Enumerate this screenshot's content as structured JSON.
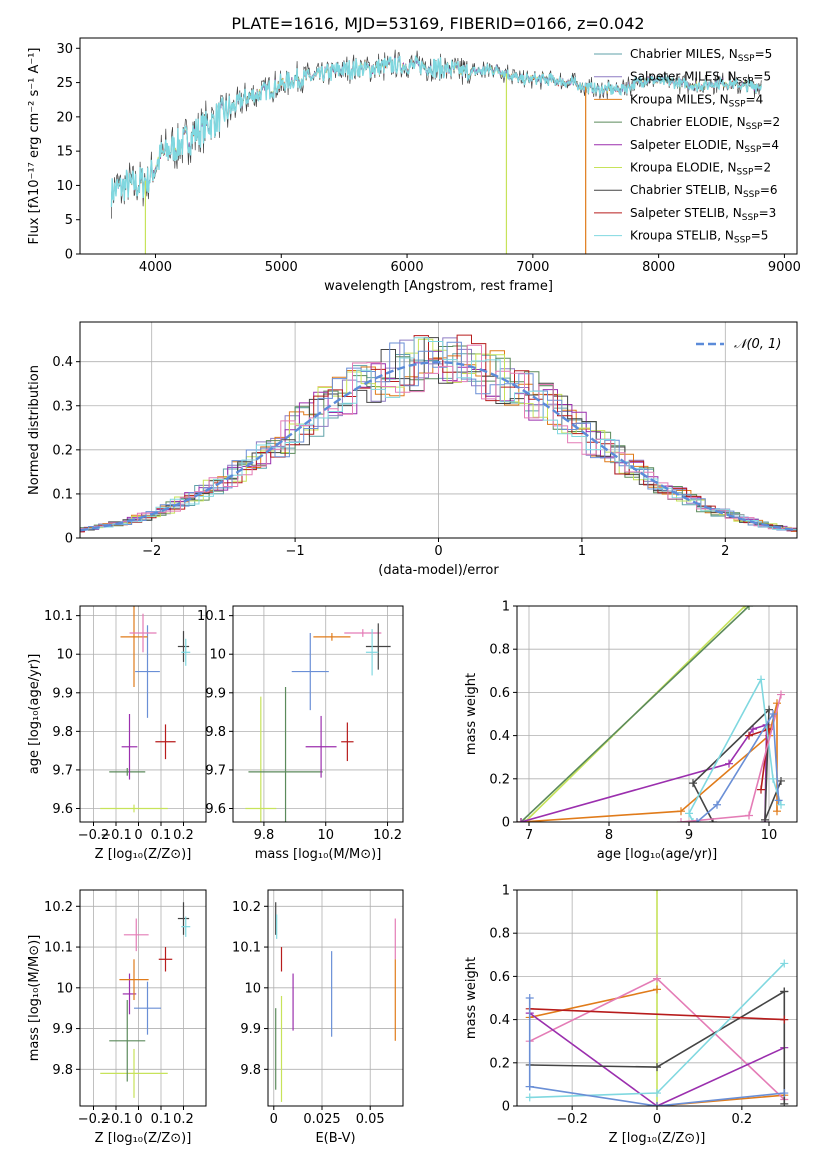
{
  "figure_title": "PLATE=1616, MJD=53169, FIBERID=0166, z=0.042",
  "colors": {
    "chabrier_miles": "#5fa2a9",
    "salpeter_miles": "#8e7cc3",
    "kroupa_miles": "#e07b1a",
    "chabrier_elodie": "#5b8a5b",
    "salpeter_elodie": "#9b2fae",
    "kroupa_elodie": "#c7e35a",
    "chabrier_stelib": "#444444",
    "salpeter_stelib": "#b71c1c",
    "kroupa_stelib": "#80d8e0",
    "blue": "#6a8fd6",
    "pink": "#e47cb6",
    "orange": "#e07b1a"
  },
  "chart_data": [
    {
      "id": "spectrum",
      "type": "line",
      "title": "PLATE=1616, MJD=53169, FIBERID=0166, z=0.042",
      "xlabel": "wavelength [Angstrom, rest frame]",
      "ylabel": "Flux [fλ10⁻¹⁷ erg cm⁻² s⁻¹ A⁻¹]",
      "xlim": [
        3400,
        9100
      ],
      "ylim": [
        0,
        31.5
      ],
      "xticks": [
        4000,
        5000,
        6000,
        7000,
        8000,
        9000
      ],
      "yticks": [
        0,
        5,
        10,
        15,
        20,
        25,
        30
      ],
      "legend_position": "top-right",
      "legend": [
        "Chabrier MILES, N_SSP=5",
        "Salpeter MILES, N_SSP=5",
        "Kroupa MILES, N_SSP=4",
        "Chabrier ELODIE, N_SSP=2",
        "Salpeter ELODIE, N_SSP=4",
        "Kroupa ELODIE, N_SSP=2",
        "Chabrier STELIB, N_SSP=6",
        "Salpeter STELIB, N_SSP=3",
        "Kroupa STELIB, N_SSP=5"
      ],
      "continuum_x": [
        3650,
        3750,
        3850,
        3950,
        4050,
        4200,
        4350,
        4500,
        4700,
        4900,
        5100,
        5300,
        5500,
        5700,
        5900,
        6100,
        6300,
        6500,
        6700,
        6900,
        7100,
        7300,
        7500,
        7700,
        7900,
        8100,
        8300,
        8500,
        8700,
        8820
      ],
      "continuum_y": [
        9.0,
        10.0,
        10.0,
        11.0,
        14.5,
        16.0,
        18.0,
        20.0,
        22.5,
        24.0,
        25.5,
        26.0,
        27.0,
        27.0,
        27.5,
        27.5,
        27.0,
        26.5,
        27.0,
        25.5,
        25.5,
        25.0,
        24.0,
        24.0,
        25.5,
        25.0,
        24.5,
        25.0,
        24.5,
        24.5
      ],
      "drops": [
        {
          "x": 3920,
          "series": "Kroupa ELODIE"
        },
        {
          "x": 6790,
          "series": "Kroupa ELODIE"
        },
        {
          "x": 7420,
          "series": "Kroupa MILES"
        }
      ]
    },
    {
      "id": "residual-histogram",
      "type": "histogram",
      "xlabel": "(data-model)/error",
      "ylabel": "Normed distribution",
      "xlim": [
        -2.5,
        2.5
      ],
      "ylim": [
        0,
        0.49
      ],
      "xticks": [
        -2,
        -1,
        0,
        1,
        2
      ],
      "yticks": [
        0.0,
        0.1,
        0.2,
        0.3,
        0.4
      ],
      "grid": true,
      "legend_position": "top-right",
      "legend": [
        "𝒩(0, 1)"
      ],
      "bin_width": 0.1,
      "reference_curve": {
        "name": "𝒩(0, 1)",
        "mean": 0,
        "sigma": 1
      }
    },
    {
      "id": "age-vs-Z",
      "type": "scatter",
      "xlabel": "Z [log₁₀(Z/Z⊙)]",
      "ylabel": "age  [log₁₀(age/yr)]",
      "xlim": [
        -0.26,
        0.3
      ],
      "ylim": [
        9.565,
        10.125
      ],
      "xticks": [
        -0.2,
        -0.1,
        0.0,
        0.1,
        0.2
      ],
      "yticks": [
        9.6,
        9.7,
        9.8,
        9.9,
        10.0,
        10.1
      ],
      "grid": true,
      "points": [
        {
          "series": "kroupa_elodie",
          "x": -0.02,
          "y": 9.6,
          "xerr": 0.15,
          "yerr": 0.01
        },
        {
          "series": "chabrier_elodie",
          "x": -0.05,
          "y": 9.695,
          "xerr": 0.08,
          "yerr": 0.01
        },
        {
          "series": "salpeter_elodie",
          "x": -0.04,
          "y": 9.76,
          "xerr": 0.035,
          "yerr": 0.085
        },
        {
          "series": "salpeter_stelib",
          "x": 0.12,
          "y": 9.773,
          "xerr": 0.045,
          "yerr": 0.045
        },
        {
          "series": "blue",
          "x": 0.04,
          "y": 9.955,
          "xerr": 0.055,
          "yerr": 0.12
        },
        {
          "series": "orange",
          "x": -0.02,
          "y": 10.045,
          "xerr": 0.06,
          "yerr": 0.13
        },
        {
          "series": "pink",
          "x": 0.02,
          "y": 10.055,
          "xerr": 0.06,
          "yerr": 0.05
        },
        {
          "series": "chabrier_stelib",
          "x": 0.2,
          "y": 10.02,
          "xerr": 0.025,
          "yerr": 0.04
        },
        {
          "series": "kroupa_stelib",
          "x": 0.21,
          "y": 10.005,
          "xerr": 0.02,
          "yerr": 0.035
        }
      ]
    },
    {
      "id": "age-vs-mass",
      "type": "scatter",
      "xlabel": "mass [log₁₀(M/M⊙)]",
      "ylabel": "",
      "xlim": [
        9.7,
        10.25
      ],
      "ylim": [
        9.565,
        10.125
      ],
      "xticks": [
        9.8,
        10.0,
        10.2
      ],
      "yticks": [
        9.6,
        9.7,
        9.8,
        9.9,
        10.0,
        10.1
      ],
      "grid": true,
      "points": [
        {
          "series": "kroupa_elodie",
          "x": 9.79,
          "y": 9.6,
          "xerr": 0.05,
          "yerr": 0.29
        },
        {
          "series": "chabrier_elodie",
          "x": 9.87,
          "y": 9.695,
          "xerr": 0.12,
          "yerr": 0.22
        },
        {
          "series": "salpeter_elodie",
          "x": 9.985,
          "y": 9.76,
          "xerr": 0.05,
          "yerr": 0.08
        },
        {
          "series": "salpeter_stelib",
          "x": 10.07,
          "y": 9.773,
          "xerr": 0.02,
          "yerr": 0.05
        },
        {
          "series": "blue",
          "x": 9.95,
          "y": 9.955,
          "xerr": 0.06,
          "yerr": 0.1
        },
        {
          "series": "orange",
          "x": 10.02,
          "y": 10.045,
          "xerr": 0.06,
          "yerr": 0.01
        },
        {
          "series": "pink",
          "x": 10.12,
          "y": 10.055,
          "xerr": 0.06,
          "yerr": 0.01
        },
        {
          "series": "chabrier_stelib",
          "x": 10.17,
          "y": 10.02,
          "xerr": 0.04,
          "yerr": 0.06
        },
        {
          "series": "kroupa_stelib",
          "x": 10.15,
          "y": 10.005,
          "xerr": 0.02,
          "yerr": 0.06
        }
      ]
    },
    {
      "id": "weight-vs-age",
      "type": "line",
      "xlabel": "age  [log₁₀(age/yr)]",
      "ylabel": "mass weight",
      "xlim": [
        6.85,
        10.35
      ],
      "ylim": [
        0,
        1.0
      ],
      "xticks": [
        7,
        8,
        9,
        10
      ],
      "yticks": [
        0.0,
        0.2,
        0.4,
        0.6,
        0.8,
        1.0
      ],
      "grid": true,
      "series": [
        {
          "key": "kroupa_elodie",
          "x": [
            6.95,
            9.7
          ],
          "y": [
            0.0,
            1.0
          ]
        },
        {
          "key": "chabrier_elodie",
          "x": [
            6.9,
            9.75
          ],
          "y": [
            0.0,
            1.0
          ]
        },
        {
          "key": "kroupa_miles",
          "x": [
            6.9,
            8.9,
            10.0,
            10.1,
            10.1
          ],
          "y": [
            0.0,
            0.05,
            0.4,
            0.55,
            0.05
          ]
        },
        {
          "key": "salpeter_elodie",
          "x": [
            6.9,
            9.5,
            9.8,
            9.97,
            9.95
          ],
          "y": [
            0.0,
            0.27,
            0.43,
            0.45,
            0.0
          ]
        },
        {
          "key": "chabrier_stelib",
          "x": [
            9.3,
            9.05,
            10.0,
            9.95,
            10.15
          ],
          "y": [
            0.0,
            0.18,
            0.52,
            0.01,
            0.19
          ]
        },
        {
          "key": "salpeter_stelib",
          "x": [
            9.75,
            10.0,
            9.9
          ],
          "y": [
            0.4,
            0.43,
            0.15
          ]
        },
        {
          "key": "kroupa_stelib",
          "x": [
            9.05,
            9.0,
            9.9,
            10.05,
            10.15
          ],
          "y": [
            0.0,
            0.04,
            0.66,
            0.2,
            0.08
          ]
        },
        {
          "key": "pink",
          "x": [
            8.9,
            9.75,
            10.15
          ],
          "y": [
            0.0,
            0.03,
            0.59
          ]
        },
        {
          "key": "blue",
          "x": [
            9.1,
            9.35,
            10.05,
            10.12
          ],
          "y": [
            0.0,
            0.08,
            0.5,
            0.1
          ]
        }
      ]
    },
    {
      "id": "mass-vs-Z",
      "type": "scatter",
      "xlabel": "Z [log₁₀(Z/Z⊙)]",
      "ylabel": "mass [log₁₀(M/M⊙)]",
      "xlim": [
        -0.26,
        0.3
      ],
      "ylim": [
        9.71,
        10.24
      ],
      "xticks": [
        -0.2,
        -0.1,
        0.0,
        0.1,
        0.2
      ],
      "yticks": [
        9.8,
        9.9,
        10.0,
        10.1,
        10.2
      ],
      "grid": true,
      "points": [
        {
          "series": "kroupa_elodie",
          "x": -0.02,
          "y": 9.79,
          "xerr": 0.15,
          "yerr": 0.06
        },
        {
          "series": "chabrier_elodie",
          "x": -0.05,
          "y": 9.87,
          "xerr": 0.08,
          "yerr": 0.1
        },
        {
          "series": "salpeter_elodie",
          "x": -0.04,
          "y": 9.985,
          "xerr": 0.03,
          "yerr": 0.05
        },
        {
          "series": "orange",
          "x": -0.02,
          "y": 10.02,
          "xerr": 0.065,
          "yerr": 0.05
        },
        {
          "series": "blue",
          "x": 0.04,
          "y": 9.95,
          "xerr": 0.06,
          "yerr": 0.065
        },
        {
          "series": "pink",
          "x": -0.01,
          "y": 10.13,
          "xerr": 0.055,
          "yerr": 0.04
        },
        {
          "series": "salpeter_stelib",
          "x": 0.12,
          "y": 10.07,
          "xerr": 0.03,
          "yerr": 0.03
        },
        {
          "series": "chabrier_stelib",
          "x": 0.2,
          "y": 10.17,
          "xerr": 0.025,
          "yerr": 0.04
        },
        {
          "series": "kroupa_stelib",
          "x": 0.21,
          "y": 10.15,
          "xerr": 0.02,
          "yerr": 0.025
        }
      ]
    },
    {
      "id": "mass-vs-EBV",
      "type": "scatter",
      "xlabel": "E(B-V)",
      "ylabel": "",
      "xlim": [
        -0.003,
        0.067
      ],
      "ylim": [
        9.71,
        10.24
      ],
      "xticks": [
        0.0,
        0.025,
        0.05
      ],
      "yticks": [
        9.8,
        9.9,
        10.0,
        10.1,
        10.2
      ],
      "grid": true,
      "points": [
        {
          "series": "chabrier_stelib",
          "x": 0.001,
          "y": 10.17,
          "yerr": 0.04
        },
        {
          "series": "kroupa_stelib",
          "x": 0.0015,
          "y": 10.15,
          "yerr": 0.03
        },
        {
          "series": "chabrier_elodie",
          "x": 0.001,
          "y": 9.85,
          "yerr": 0.1
        },
        {
          "series": "salpeter_stelib",
          "x": 0.004,
          "y": 10.07,
          "yerr": 0.03
        },
        {
          "series": "kroupa_elodie",
          "x": 0.004,
          "y": 9.85,
          "yerr": 0.13
        },
        {
          "series": "salpeter_elodie",
          "x": 0.01,
          "y": 9.965,
          "yerr": 0.07
        },
        {
          "series": "blue",
          "x": 0.03,
          "y": 9.985,
          "yerr": 0.105
        },
        {
          "series": "pink",
          "x": 0.063,
          "y": 10.12,
          "yerr": 0.05
        },
        {
          "series": "orange",
          "x": 0.063,
          "y": 9.97,
          "yerr": 0.1
        }
      ]
    },
    {
      "id": "weight-vs-Z",
      "type": "line",
      "xlabel": "Z [log₁₀(Z/Z⊙)]",
      "ylabel": "mass weight",
      "xlim": [
        -0.33,
        0.33
      ],
      "ylim": [
        0,
        1.0
      ],
      "xticks": [
        -0.2,
        0.0,
        0.2
      ],
      "yticks": [
        0.0,
        0.2,
        0.4,
        0.6,
        0.8,
        1.0
      ],
      "grid": true,
      "series": [
        {
          "key": "kroupa_elodie",
          "x": [
            0.0,
            0.0
          ],
          "y": [
            0.0,
            1.0
          ]
        },
        {
          "key": "kroupa_miles",
          "x": [
            -0.3,
            0.0
          ],
          "y": [
            0.41,
            0.54
          ]
        },
        {
          "key": "kroupa_miles_b",
          "x": [
            0.0,
            0.3
          ],
          "y": [
            0.0,
            0.05
          ]
        },
        {
          "key": "pink",
          "x": [
            -0.3,
            0.0,
            0.3
          ],
          "y": [
            0.3,
            0.59,
            0.03
          ]
        },
        {
          "key": "salpeter_elodie",
          "x": [
            -0.3,
            0.0,
            0.3
          ],
          "y": [
            0.43,
            0.0,
            0.27
          ]
        },
        {
          "key": "chabrier_stelib",
          "x": [
            -0.3,
            0.0,
            0.3
          ],
          "y": [
            0.19,
            0.18,
            0.53
          ]
        },
        {
          "key": "chabrier_stelib_b",
          "x": [
            0.3,
            0.3
          ],
          "y": [
            0.01,
            0.53
          ]
        },
        {
          "key": "salpeter_stelib",
          "x": [
            -0.3,
            0.3
          ],
          "y": [
            0.45,
            0.4
          ]
        },
        {
          "key": "kroupa_stelib",
          "x": [
            -0.3,
            0.0,
            0.3
          ],
          "y": [
            0.04,
            0.06,
            0.66
          ]
        },
        {
          "key": "blue",
          "x": [
            -0.3,
            0.0,
            0.3
          ],
          "y": [
            0.09,
            0.0,
            0.06
          ]
        },
        {
          "key": "blue_b",
          "x": [
            -0.3,
            -0.3
          ],
          "y": [
            0.09,
            0.5
          ]
        }
      ]
    }
  ]
}
